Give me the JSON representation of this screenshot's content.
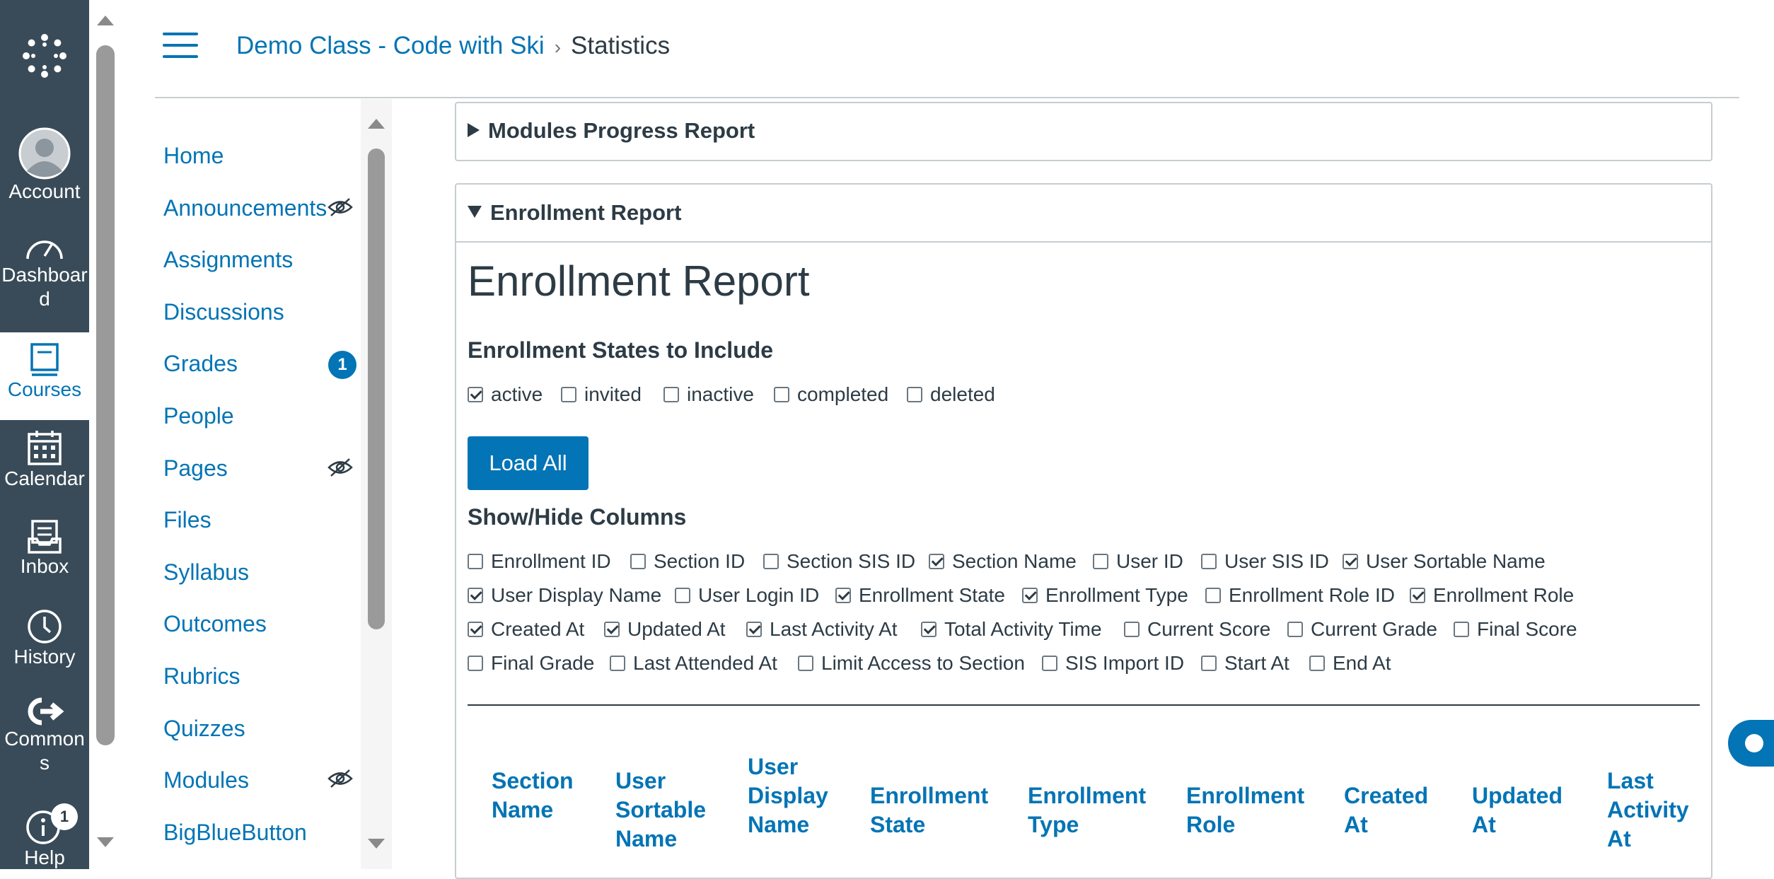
{
  "global_nav": {
    "account": "Account",
    "dashboard": "Dashboar\nd",
    "courses": "Courses",
    "calendar": "Calendar",
    "inbox": "Inbox",
    "history": "History",
    "commons": "Common\ns",
    "help": "Help",
    "help_badge": "1"
  },
  "breadcrumb": {
    "course": "Demo Class - Code with Ski",
    "separator": "›",
    "current": "Statistics"
  },
  "course_nav": {
    "items": [
      {
        "label": "Home"
      },
      {
        "label": "Announcements",
        "hidden_icon": "eye-slash-icon"
      },
      {
        "label": "Assignments"
      },
      {
        "label": "Discussions"
      },
      {
        "label": "Grades",
        "badge": "1"
      },
      {
        "label": "People"
      },
      {
        "label": "Pages",
        "hidden_icon": "eye-slash-icon"
      },
      {
        "label": "Files"
      },
      {
        "label": "Syllabus"
      },
      {
        "label": "Outcomes"
      },
      {
        "label": "Rubrics"
      },
      {
        "label": "Quizzes"
      },
      {
        "label": "Modules",
        "hidden_icon": "eye-slash-icon"
      },
      {
        "label": "BigBlueButton"
      }
    ]
  },
  "modules_report": {
    "title": "Modules Progress Report"
  },
  "enrollment_report": {
    "summary": "Enrollment Report",
    "heading": "Enrollment Report",
    "states_heading": "Enrollment States to Include",
    "states": [
      {
        "label": "active",
        "checked": true
      },
      {
        "label": "invited",
        "checked": false
      },
      {
        "label": "inactive",
        "checked": false
      },
      {
        "label": "completed",
        "checked": false
      },
      {
        "label": "deleted",
        "checked": false
      }
    ],
    "load_button": "Load All",
    "columns_heading": "Show/Hide Columns",
    "columns": [
      [
        {
          "label": "Enrollment ID",
          "checked": false
        },
        {
          "label": "Section ID",
          "checked": false
        },
        {
          "label": "Section SIS ID",
          "checked": false
        },
        {
          "label": "Section Name",
          "checked": true
        },
        {
          "label": "User ID",
          "checked": false
        },
        {
          "label": "User SIS ID",
          "checked": false
        },
        {
          "label": "User Sortable Name",
          "checked": true
        }
      ],
      [
        {
          "label": "User Display Name",
          "checked": true
        },
        {
          "label": "User Login ID",
          "checked": false
        },
        {
          "label": "Enrollment State",
          "checked": true
        },
        {
          "label": "Enrollment Type",
          "checked": true
        },
        {
          "label": "Enrollment Role ID",
          "checked": false
        },
        {
          "label": "Enrollment Role",
          "checked": true
        }
      ],
      [
        {
          "label": "Created At",
          "checked": true
        },
        {
          "label": "Updated At",
          "checked": true
        },
        {
          "label": "Last Activity At",
          "checked": true
        },
        {
          "label": "Total Activity Time",
          "checked": true
        },
        {
          "label": "Current Score",
          "checked": false
        },
        {
          "label": "Current Grade",
          "checked": false
        },
        {
          "label": "Final Score",
          "checked": false
        }
      ],
      [
        {
          "label": "Final Grade",
          "checked": false
        },
        {
          "label": "Last Attended At",
          "checked": false
        },
        {
          "label": "Limit Access to Section",
          "checked": false
        },
        {
          "label": "SIS Import ID",
          "checked": false
        },
        {
          "label": "Start At",
          "checked": false
        },
        {
          "label": "End At",
          "checked": false
        }
      ]
    ],
    "table_headers": [
      "Section\nName",
      "User\nSortable\nName",
      "User\nDisplay\nName",
      "Enrollment\nState",
      "Enrollment\nType",
      "Enrollment\nRole",
      "Created\nAt",
      "Updated\nAt",
      "Last\nActivity\nAt"
    ]
  },
  "colors": {
    "brand_blue": "#0374b5",
    "nav_dark": "#394b58",
    "text": "#2d3b45"
  }
}
